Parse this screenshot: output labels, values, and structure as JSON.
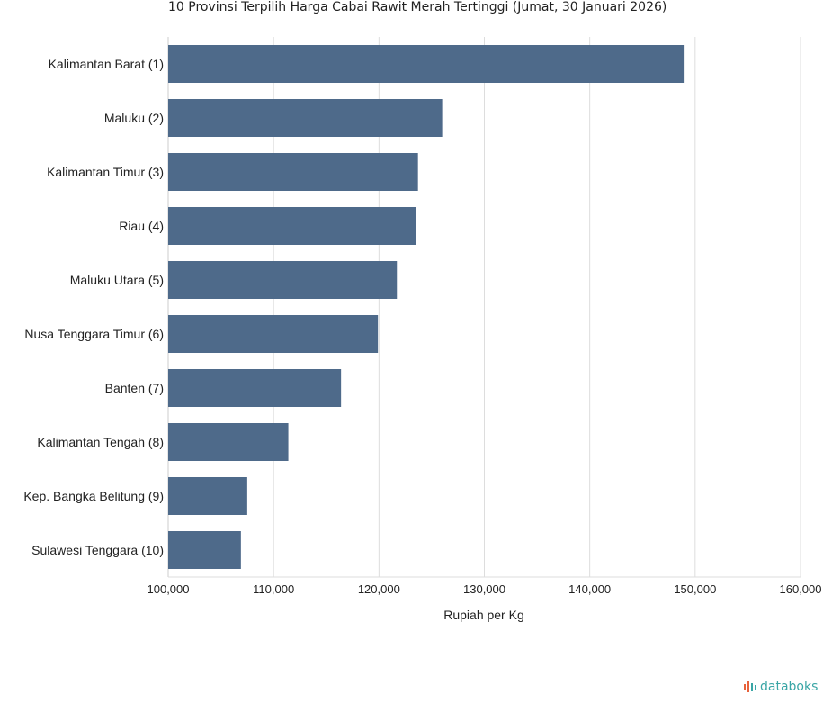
{
  "title": "10 Provinsi Terpilih Harga Cabai Rawit Merah Tertinggi (Jumat, 30 Januari 2026)",
  "brand": {
    "name": "databoks",
    "logo_icon": "databoks-logo-icon",
    "color": "#3aa6a6",
    "accent_color": "#e8623b"
  },
  "chart_data": {
    "type": "bar",
    "orientation": "horizontal",
    "title": "10 Provinsi Terpilih Harga Cabai Rawit Merah Tertinggi (Jumat, 30 Januari 2026)",
    "xlabel": "Rupiah per Kg",
    "ylabel": "",
    "xlim": [
      100000,
      160000
    ],
    "x_ticks": [
      "100,000",
      "110,000",
      "120,000",
      "130,000",
      "140,000",
      "150,000",
      "160,000"
    ],
    "x_tick_values": [
      100000,
      110000,
      120000,
      130000,
      140000,
      150000,
      160000
    ],
    "grid": true,
    "bar_color": "#4e6a8a",
    "categories": [
      "Kalimantan Barat (1)",
      "Maluku (2)",
      "Kalimantan Timur (3)",
      "Riau (4)",
      "Maluku Utara (5)",
      "Nusa Tenggara Timur (6)",
      "Banten (7)",
      "Kalimantan Tengah (8)",
      "Kep. Bangka Belitung (9)",
      "Sulawesi Tenggara (10)"
    ],
    "values": [
      149000,
      126000,
      123700,
      123500,
      121700,
      119900,
      116400,
      111400,
      107500,
      106900
    ]
  }
}
